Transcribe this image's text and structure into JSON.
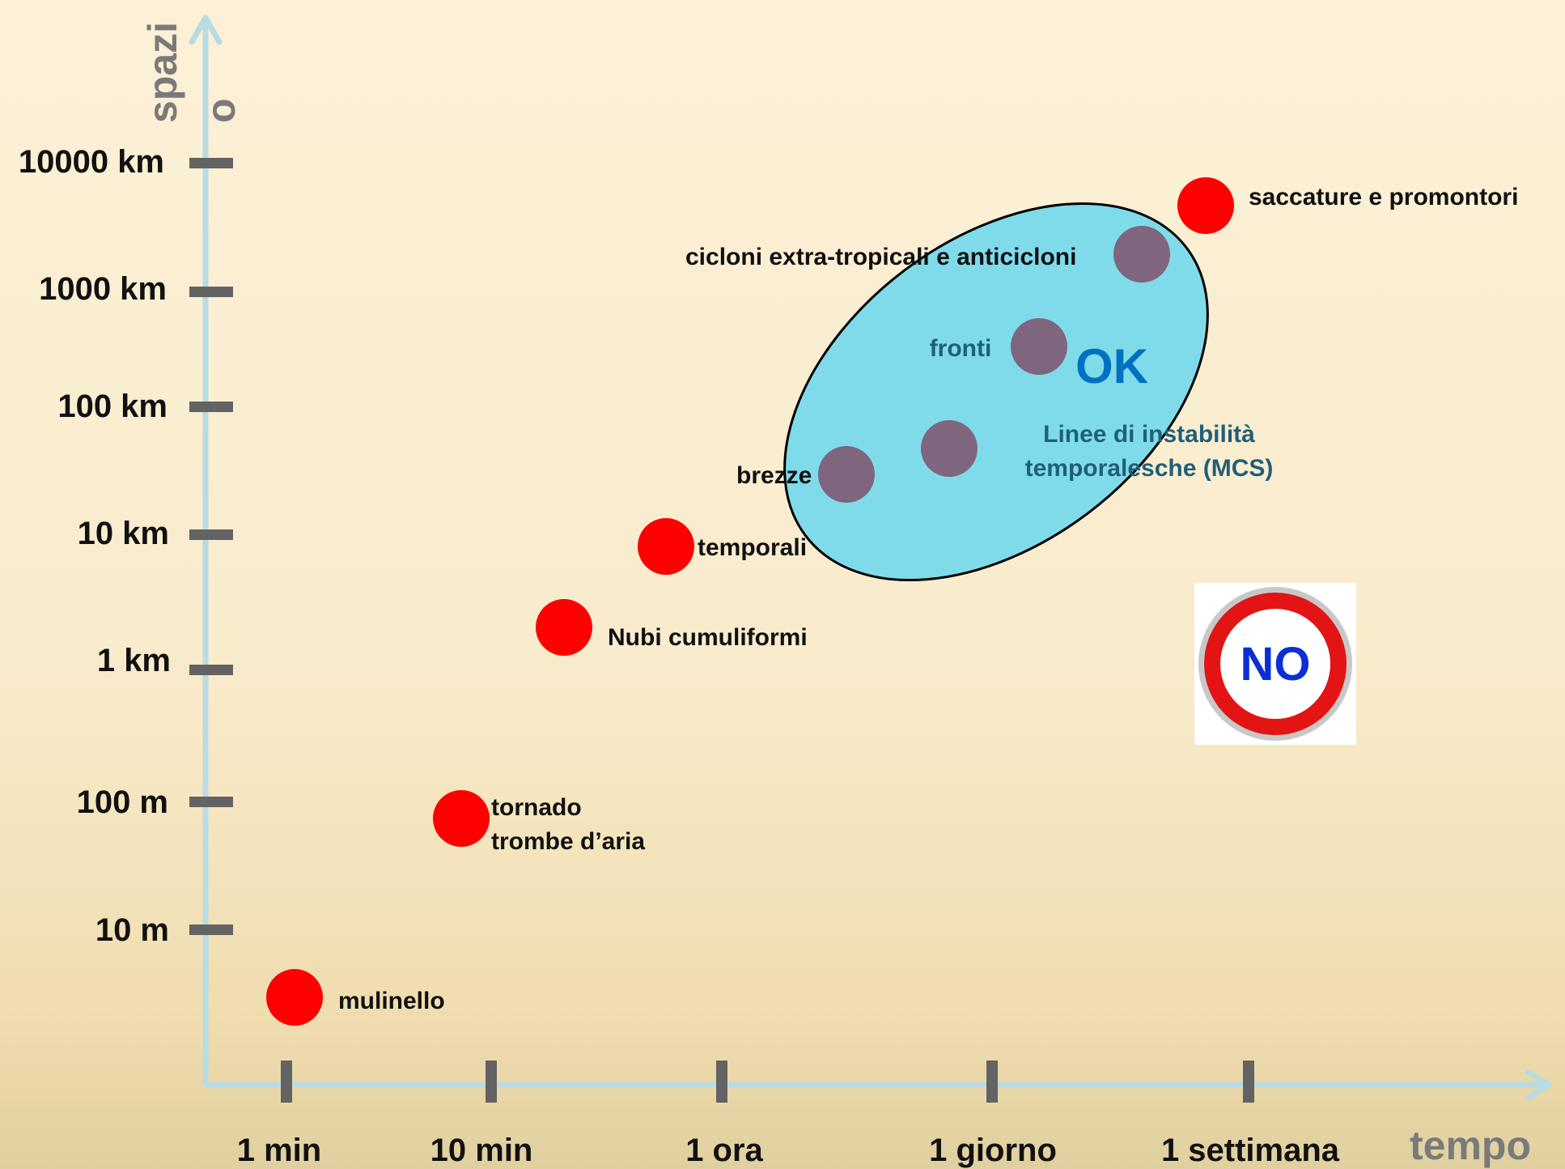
{
  "chart_data": {
    "type": "scatter",
    "title": "",
    "xlabel": "tempo",
    "ylabel_lines": [
      "spazi",
      "o"
    ],
    "x_log_scale": true,
    "y_log_scale": true,
    "x_ticks": [
      "1 min",
      "10 min",
      "1 ora",
      "1 giorno",
      "1 settimana"
    ],
    "y_ticks": [
      "10000 km",
      "1000 km",
      "100 km",
      "10 km",
      "1 km",
      "100 m",
      "10 m"
    ],
    "grid": false,
    "series": [
      {
        "color": "#ff0000",
        "points": [
          {
            "label": [
              "mulinello"
            ],
            "x": "<1 min",
            "y": "<10 m"
          },
          {
            "label": [
              "tornado",
              "trombe d’aria"
            ],
            "x": "~10 min",
            "y": "~50 m"
          },
          {
            "label": [
              "Nubi cumuliformi"
            ],
            "x": "~15 min",
            "y": "~2 km"
          },
          {
            "label": [
              "temporali"
            ],
            "x": "~50 min",
            "y": "~6 km"
          },
          {
            "label": [
              "saccature e promontori"
            ],
            "x": ">1 settimana",
            "y": "~5000 km"
          }
        ]
      },
      {
        "color": "#80657f",
        "points": [
          {
            "label": [
              "brezze"
            ],
            "x": "~4 ore",
            "y": "~15 km"
          },
          {
            "label": [
              "Linee di instabilità",
              "temporalesche (MCS)"
            ],
            "x": "~12 ore",
            "y": "~25 km"
          },
          {
            "label": [
              "fronti"
            ],
            "x": "~2 giorni",
            "y": "~300 km"
          },
          {
            "label": [
              "cicloni extra-tropicali e anticicloni"
            ],
            "x": "~5 giorni",
            "y": "~1500 km"
          }
        ]
      }
    ],
    "annotations": {
      "ok_label": "OK",
      "ok_region_color": "#7fdbea",
      "no_label": "NO"
    }
  }
}
